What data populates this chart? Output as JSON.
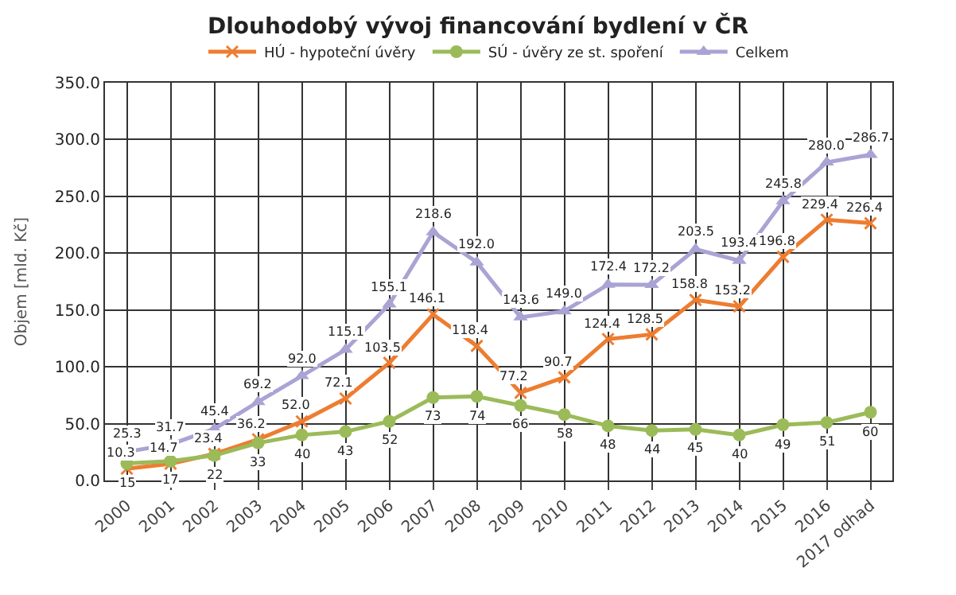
{
  "chart_data": {
    "type": "line",
    "title": "Dlouhodobý vývoj financování bydlení v ČR",
    "ylabel": "Objem [mld. Kč]",
    "categories": [
      "2000",
      "2001",
      "2002",
      "2003",
      "2004",
      "2005",
      "2006",
      "2007",
      "2008",
      "2009",
      "2010",
      "2011",
      "2012",
      "2013",
      "2014",
      "2015",
      "2016",
      "2017 odhad"
    ],
    "series": [
      {
        "name": "HÚ - hypoteční úvěry",
        "color": "#ed7d31",
        "marker": "cross",
        "values": [
          10.3,
          14.7,
          23.4,
          36.2,
          52.0,
          72.1,
          103.5,
          146.1,
          118.4,
          77.2,
          90.7,
          124.4,
          128.5,
          158.8,
          153.2,
          196.8,
          229.4,
          226.4
        ],
        "value_labels": [
          "10.3",
          "14.7",
          "23.4",
          "36.2",
          "52.0",
          "72.1",
          "103.5",
          "146.1",
          "118.4",
          "77.2",
          "90.7",
          "124.4",
          "128.5",
          "158.8",
          "153.2",
          "196.8",
          "229.4",
          "226.4"
        ]
      },
      {
        "name": "SÚ - úvěry ze st. spoření",
        "color": "#9bbb59",
        "marker": "circle",
        "values": [
          15,
          17,
          22,
          33,
          40,
          43,
          52,
          73,
          74,
          66,
          58,
          48,
          44,
          45,
          40,
          49,
          51,
          60
        ],
        "value_labels": [
          "15",
          "17",
          "22",
          "33",
          "40",
          "43",
          "52",
          "73",
          "74",
          "66",
          "58",
          "48",
          "44",
          "45",
          "40",
          "49",
          "51",
          "60"
        ]
      },
      {
        "name": "Celkem",
        "color": "#a9a4d4",
        "marker": "triangle",
        "values": [
          25.3,
          31.7,
          45.4,
          69.2,
          92.0,
          115.1,
          155.1,
          218.6,
          192.0,
          143.6,
          149.0,
          172.4,
          172.2,
          203.5,
          193.4,
          245.8,
          280.0,
          286.7
        ],
        "value_labels": [
          "25.3",
          "31.7",
          "45.4",
          "69.2",
          "92.0",
          "115.1",
          "155.1",
          "218.6",
          "192.0",
          "143.6",
          "149.0",
          "172.4",
          "172.2",
          "203.5",
          "193.4",
          "245.8",
          "280.0",
          "286.7"
        ]
      }
    ],
    "ylim": [
      0,
      350
    ],
    "yticks": [
      {
        "value": 0,
        "label": "0.0"
      },
      {
        "value": 50,
        "label": "50.0"
      },
      {
        "value": 100,
        "label": "100.0"
      },
      {
        "value": 150,
        "label": "150.0"
      },
      {
        "value": 200,
        "label": "200.0"
      },
      {
        "value": 250,
        "label": "250.0"
      },
      {
        "value": 300,
        "label": "300.0"
      },
      {
        "value": 350,
        "label": "350.0"
      }
    ],
    "grid": true,
    "legend": "top",
    "line_style": "solid"
  }
}
